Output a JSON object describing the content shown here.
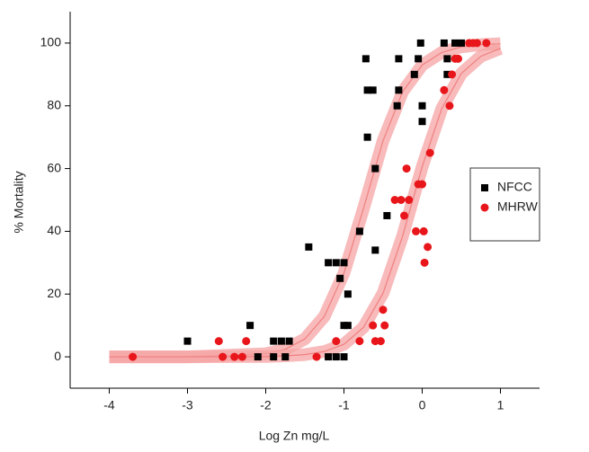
{
  "chart_data": {
    "type": "scatter",
    "x_label": "Log Zn mg/L",
    "y_label": "% Mortality",
    "xlim": [
      -4.5,
      1.5
    ],
    "ylim": [
      -10,
      110
    ],
    "xticks": [
      -4,
      -3,
      -2,
      -1,
      0,
      1
    ],
    "yticks": [
      0,
      20,
      40,
      60,
      80,
      100
    ],
    "legend": "right",
    "series": [
      {
        "name": "NFCC",
        "color": "#000000",
        "marker": "square",
        "x": [
          -3,
          -2.2,
          -2.1,
          -1.9,
          -1.9,
          -1.8,
          -1.75,
          -1.7,
          -1.45,
          -1.2,
          -1.1,
          -1.05,
          -1.0,
          -1.2,
          -1.1,
          -1.0,
          -1.0,
          -0.95,
          -0.95,
          -0.8,
          -0.7,
          -0.72,
          -0.7,
          -0.63,
          -0.6,
          -0.6,
          -0.45,
          -0.32,
          -0.3,
          -0.3,
          -0.1,
          -0.05,
          -0.02,
          0,
          0,
          0.28,
          0.32,
          0.32,
          0.42,
          0.5
        ],
        "values": [
          5,
          10,
          0,
          5,
          0,
          5,
          0,
          5,
          35,
          30,
          30,
          25,
          30,
          0,
          0,
          0,
          10,
          10,
          20,
          40,
          70,
          95,
          85,
          85,
          60,
          34,
          45,
          80,
          85,
          95,
          90,
          95,
          100,
          80,
          75,
          100,
          95,
          90,
          100,
          100
        ]
      },
      {
        "name": "MHRW",
        "color": "#e8161b",
        "marker": "circle",
        "x": [
          -3.7,
          -2.6,
          -2.55,
          -2.4,
          -2.3,
          -2.25,
          -1.35,
          -1.1,
          -0.8,
          -0.63,
          -0.6,
          -0.53,
          -0.5,
          -0.48,
          -0.35,
          -0.27,
          -0.2,
          -0.23,
          -0.17,
          -0.08,
          -0.05,
          0,
          0.02,
          0.03,
          0.07,
          0.1,
          0.28,
          0.35,
          0.38,
          0.42,
          0.46,
          0.6,
          0.65,
          0.7,
          0.82
        ],
        "values": [
          0,
          5,
          0,
          0,
          0,
          5,
          0,
          5,
          5,
          10,
          5,
          5,
          15,
          10,
          50,
          50,
          60,
          45,
          50,
          40,
          55,
          55,
          40,
          30,
          35,
          65,
          85,
          80,
          90,
          95,
          95,
          100,
          100,
          100,
          100
        ]
      }
    ],
    "fits": [
      {
        "color": "#f08080",
        "band_color": "#f5a3a3",
        "x": [
          -4,
          -3,
          -2,
          -1.75,
          -1.5,
          -1.25,
          -1,
          -0.75,
          -0.5,
          -0.25,
          0,
          0.25,
          0.5,
          0.75,
          1
        ],
        "values": [
          0,
          0,
          1.0,
          2.4,
          5.7,
          12.9,
          26.7,
          47.3,
          68.9,
          84.5,
          93.0,
          97.0,
          98.8,
          99.5,
          99.8
        ]
      },
      {
        "color": "#f08080",
        "band_color": "#f5a3a3",
        "x": [
          -4,
          -3,
          -2,
          -1.75,
          -1.5,
          -1.25,
          -1,
          -0.75,
          -0.5,
          -0.25,
          0,
          0.25,
          0.5,
          0.75,
          1
        ],
        "values": [
          0,
          0,
          0.1,
          0.3,
          0.7,
          1.7,
          4.0,
          9.4,
          20.3,
          38.5,
          60.6,
          79.1,
          90.3,
          95.8,
          98.3
        ]
      }
    ]
  }
}
